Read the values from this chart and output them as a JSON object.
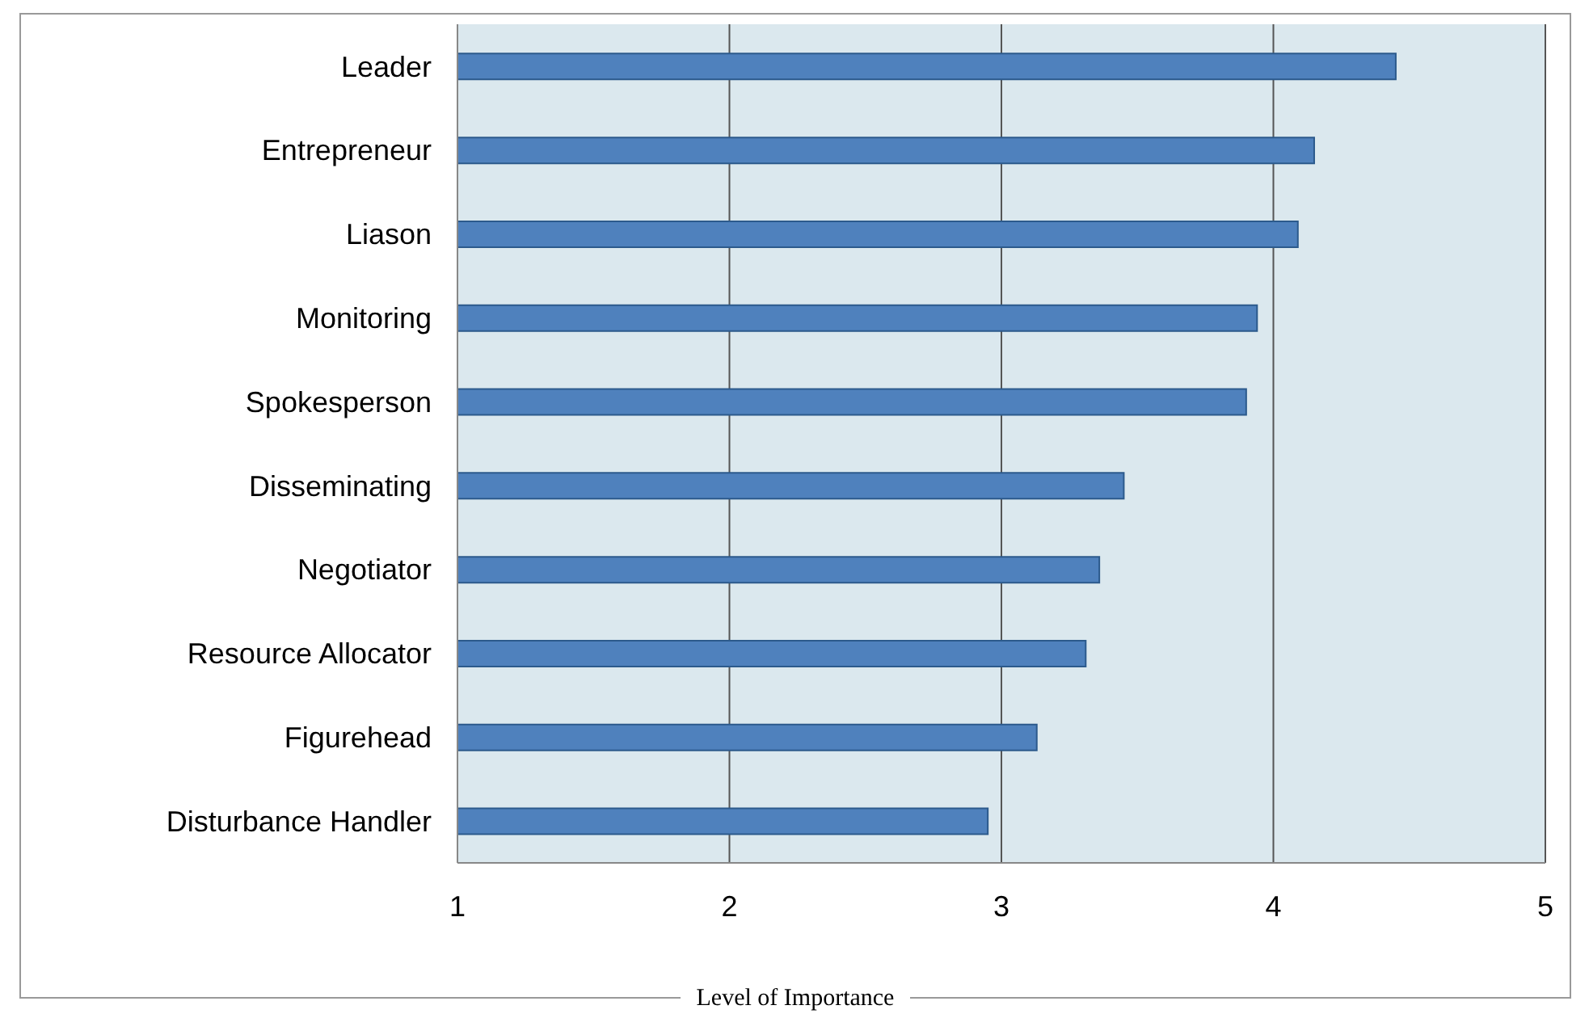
{
  "chart_data": {
    "type": "bar",
    "orientation": "horizontal",
    "xlabel": "Level of Importance",
    "categories": [
      "Leader",
      "Entrepreneur",
      "Liason",
      "Monitoring",
      "Spokesperson",
      "Disseminating",
      "Negotiator",
      "Resource Allocator",
      "Figurehead",
      "Disturbance Handler"
    ],
    "values": [
      4.45,
      4.15,
      4.09,
      3.94,
      3.9,
      3.45,
      3.36,
      3.31,
      3.13,
      2.95
    ],
    "color": "#4f81bd",
    "xlim": [
      1,
      5
    ],
    "xticks": [
      1,
      2,
      3,
      4,
      5
    ],
    "grid": "x"
  }
}
